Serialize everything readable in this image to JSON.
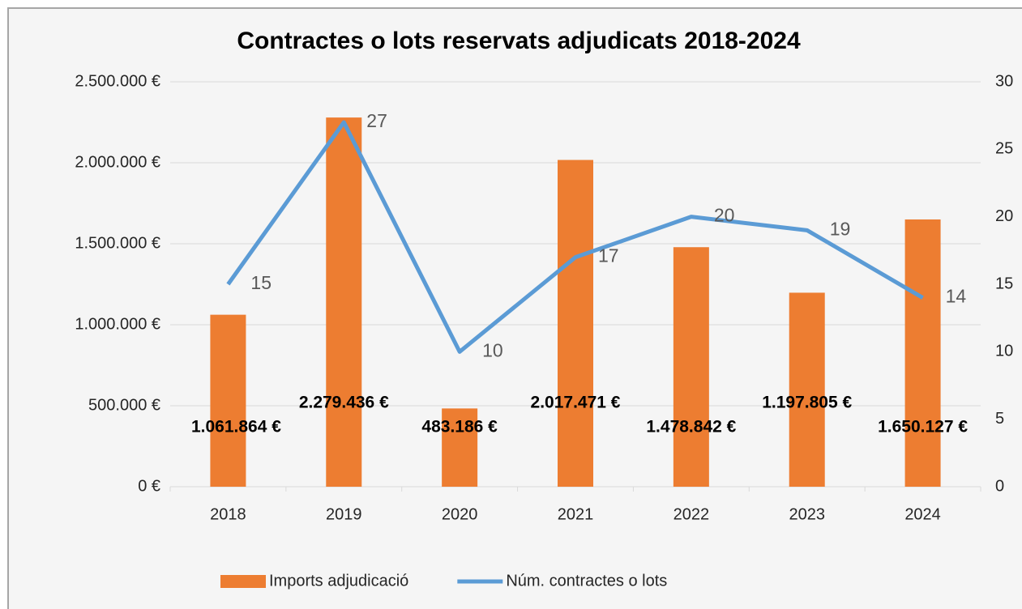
{
  "chart_data": {
    "type": "bar_line",
    "title": "Contractes o lots reservats adjudicats 2018-2024",
    "categories": [
      "2018",
      "2019",
      "2020",
      "2021",
      "2022",
      "2023",
      "2024"
    ],
    "series": [
      {
        "name": "Imports adjudicació",
        "type": "bar",
        "color": "#ed7d31",
        "values": [
          1061864,
          2279436,
          483186,
          2017471,
          1478842,
          1197805,
          1650127
        ],
        "value_labels": [
          "1.061.864 €",
          "2.279.436 €",
          "483.186 €",
          "2.017.471 €",
          "1.478.842 €",
          "1.197.805 €",
          "1.650.127 €"
        ]
      },
      {
        "name": "Núm. contractes o lots",
        "type": "line",
        "color": "#5b9bd5",
        "axis": "y2",
        "values": [
          15,
          27,
          10,
          17,
          20,
          19,
          14
        ]
      }
    ],
    "ylim": [
      0,
      2500000
    ],
    "yticks": [
      {
        "value": 0,
        "label": "0 €"
      },
      {
        "value": 500000,
        "label": "500.000 €"
      },
      {
        "value": 1000000,
        "label": "1.000.000 €"
      },
      {
        "value": 1500000,
        "label": "1.500.000 €"
      },
      {
        "value": 2000000,
        "label": "2.000.000 €"
      },
      {
        "value": 2500000,
        "label": "2.500.000 €"
      }
    ],
    "y2lim": [
      0,
      30
    ],
    "y2ticks": [
      0,
      5,
      10,
      15,
      20,
      25,
      30
    ],
    "grid": true,
    "legend": "bottom"
  }
}
